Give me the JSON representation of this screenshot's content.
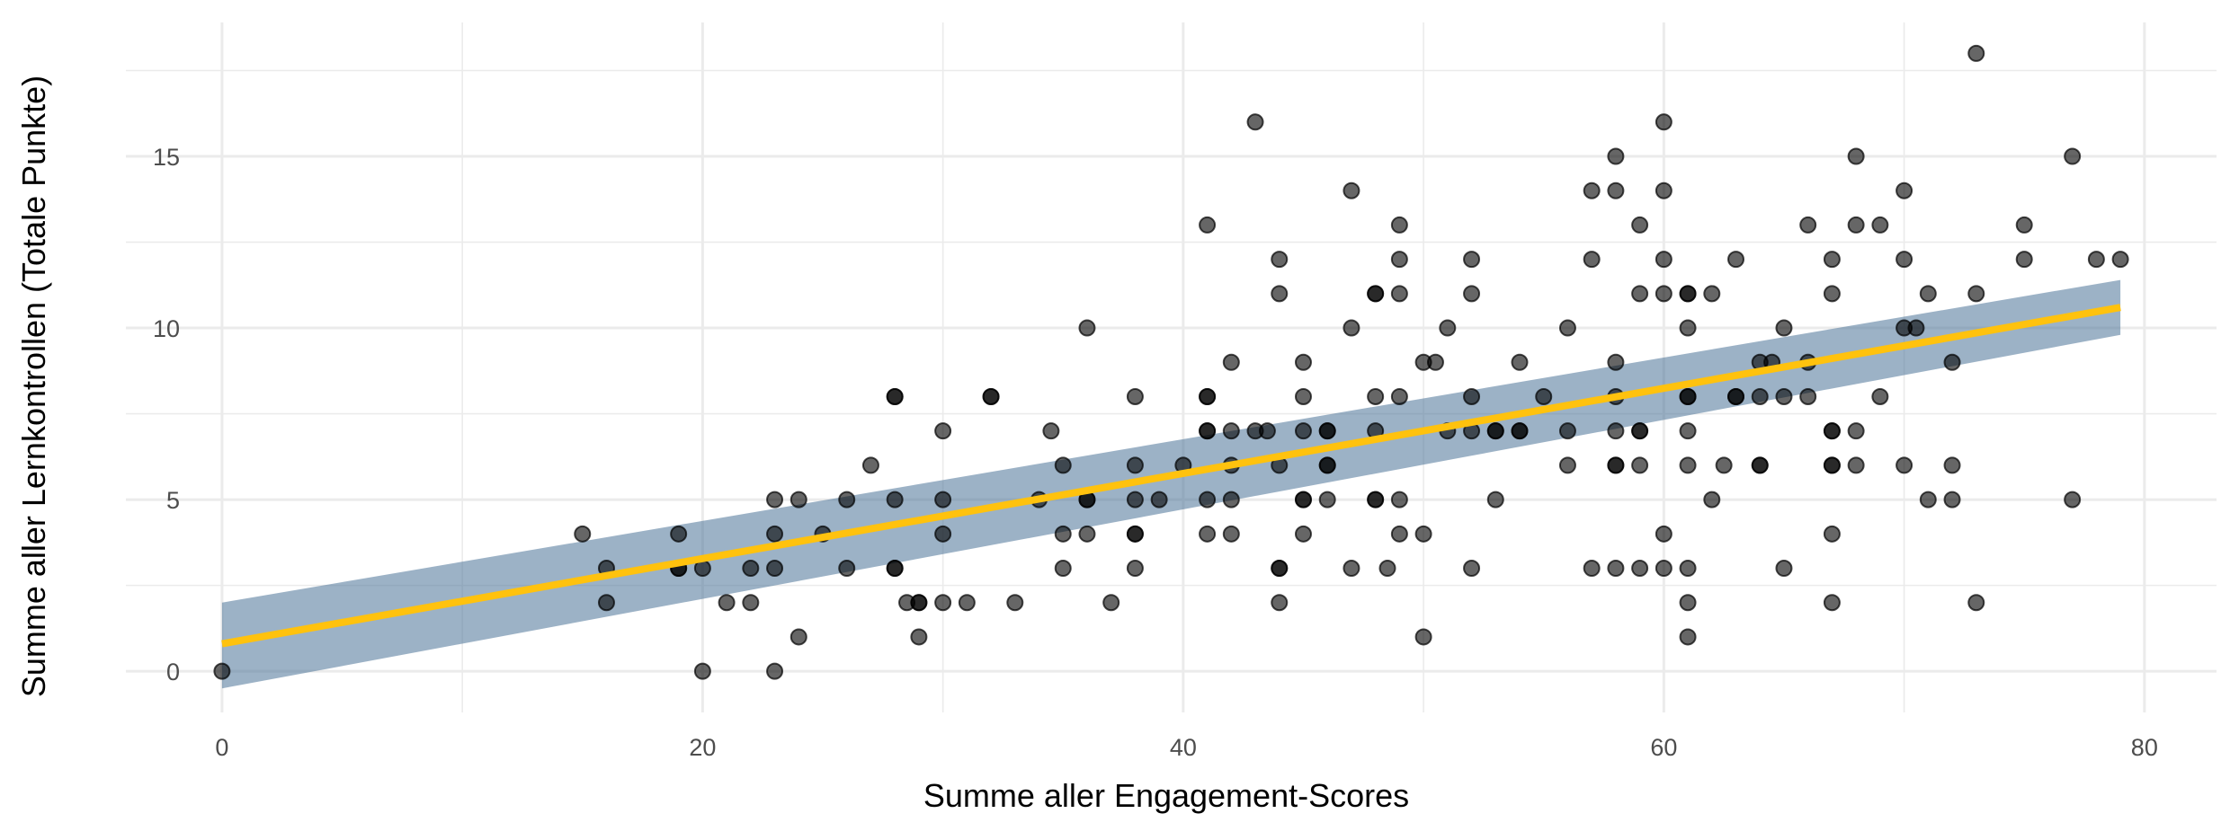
{
  "chart_data": {
    "type": "scatter",
    "title": "",
    "xlabel": "Summe aller Engagement-Scores",
    "ylabel": "Summe aller Lernkontrollen (Totale Punkte)",
    "xlim": [
      -4,
      83
    ],
    "ylim": [
      -1.2,
      18.9
    ],
    "x_ticks": [
      "0",
      "20",
      "40",
      "60",
      "80"
    ],
    "y_ticks": [
      "0",
      "5",
      "10",
      "15"
    ],
    "grid": true,
    "legend": "none",
    "colors": {
      "points": "#000000",
      "fit_line": "#FFC20E",
      "confidence_band": "#4A7398"
    },
    "points": [
      [
        0,
        0
      ],
      [
        15,
        4
      ],
      [
        16,
        3
      ],
      [
        16,
        2
      ],
      [
        19,
        4
      ],
      [
        19,
        3
      ],
      [
        19,
        3
      ],
      [
        20,
        3
      ],
      [
        20,
        0
      ],
      [
        21,
        2
      ],
      [
        22,
        2
      ],
      [
        22,
        3
      ],
      [
        23,
        5
      ],
      [
        23,
        4
      ],
      [
        23,
        3
      ],
      [
        23,
        0
      ],
      [
        24,
        5
      ],
      [
        24,
        1
      ],
      [
        25,
        4
      ],
      [
        26,
        5
      ],
      [
        26,
        3
      ],
      [
        27,
        6
      ],
      [
        28,
        8
      ],
      [
        28,
        8
      ],
      [
        28,
        5
      ],
      [
        28,
        3
      ],
      [
        28,
        3
      ],
      [
        28.5,
        2
      ],
      [
        29,
        2
      ],
      [
        29,
        2
      ],
      [
        29,
        1
      ],
      [
        30,
        7
      ],
      [
        30,
        5
      ],
      [
        30,
        4
      ],
      [
        30,
        2
      ],
      [
        31,
        2
      ],
      [
        32,
        8
      ],
      [
        32,
        8
      ],
      [
        33,
        2
      ],
      [
        34,
        5
      ],
      [
        34.5,
        7
      ],
      [
        35,
        6
      ],
      [
        35,
        4
      ],
      [
        35,
        3
      ],
      [
        36,
        5
      ],
      [
        36,
        5
      ],
      [
        36,
        10
      ],
      [
        36,
        4
      ],
      [
        37,
        2
      ],
      [
        38,
        8
      ],
      [
        38,
        6
      ],
      [
        38,
        5
      ],
      [
        38,
        4
      ],
      [
        38,
        4
      ],
      [
        38,
        3
      ],
      [
        39,
        5
      ],
      [
        40,
        6
      ],
      [
        41,
        13
      ],
      [
        41,
        8
      ],
      [
        41,
        8
      ],
      [
        41,
        7
      ],
      [
        41,
        7
      ],
      [
        41,
        5
      ],
      [
        41,
        4
      ],
      [
        42,
        9
      ],
      [
        42,
        7
      ],
      [
        42,
        6
      ],
      [
        42,
        5
      ],
      [
        42,
        4
      ],
      [
        43,
        16
      ],
      [
        43,
        7
      ],
      [
        43.5,
        7
      ],
      [
        44,
        12
      ],
      [
        44,
        11
      ],
      [
        44,
        6
      ],
      [
        44,
        3
      ],
      [
        44,
        3
      ],
      [
        44,
        2
      ],
      [
        45,
        9
      ],
      [
        45,
        8
      ],
      [
        45,
        7
      ],
      [
        45,
        5
      ],
      [
        45,
        5
      ],
      [
        45,
        4
      ],
      [
        46,
        7
      ],
      [
        46,
        7
      ],
      [
        46,
        6
      ],
      [
        46,
        6
      ],
      [
        46,
        5
      ],
      [
        47,
        14
      ],
      [
        47,
        10
      ],
      [
        47,
        3
      ],
      [
        48,
        11
      ],
      [
        48,
        11
      ],
      [
        48,
        8
      ],
      [
        48,
        7
      ],
      [
        48,
        5
      ],
      [
        48,
        5
      ],
      [
        48.5,
        3
      ],
      [
        49,
        13
      ],
      [
        49,
        12
      ],
      [
        49,
        11
      ],
      [
        49,
        8
      ],
      [
        49,
        5
      ],
      [
        49,
        4
      ],
      [
        50,
        9
      ],
      [
        50,
        4
      ],
      [
        50,
        1
      ],
      [
        50.5,
        9
      ],
      [
        51,
        10
      ],
      [
        51,
        7
      ],
      [
        52,
        12
      ],
      [
        52,
        11
      ],
      [
        52,
        8
      ],
      [
        52,
        7
      ],
      [
        52,
        3
      ],
      [
        53,
        7
      ],
      [
        53,
        7
      ],
      [
        53,
        5
      ],
      [
        54,
        9
      ],
      [
        54,
        7
      ],
      [
        54,
        7
      ],
      [
        55,
        8
      ],
      [
        56,
        10
      ],
      [
        56,
        7
      ],
      [
        56,
        6
      ],
      [
        57,
        14
      ],
      [
        57,
        12
      ],
      [
        57,
        3
      ],
      [
        58,
        15
      ],
      [
        58,
        14
      ],
      [
        58,
        9
      ],
      [
        58,
        8
      ],
      [
        58,
        7
      ],
      [
        58,
        6
      ],
      [
        58,
        6
      ],
      [
        58,
        3
      ],
      [
        59,
        13
      ],
      [
        59,
        11
      ],
      [
        59,
        7
      ],
      [
        59,
        7
      ],
      [
        59,
        6
      ],
      [
        59,
        3
      ],
      [
        60,
        16
      ],
      [
        60,
        14
      ],
      [
        60,
        12
      ],
      [
        60,
        11
      ],
      [
        60,
        4
      ],
      [
        60,
        3
      ],
      [
        61,
        11
      ],
      [
        61,
        11
      ],
      [
        61,
        10
      ],
      [
        61,
        8
      ],
      [
        61,
        8
      ],
      [
        61,
        7
      ],
      [
        61,
        6
      ],
      [
        61,
        3
      ],
      [
        61,
        2
      ],
      [
        61,
        1
      ],
      [
        62,
        11
      ],
      [
        62,
        5
      ],
      [
        62.5,
        6
      ],
      [
        63,
        12
      ],
      [
        63,
        8
      ],
      [
        63,
        8
      ],
      [
        64,
        9
      ],
      [
        64,
        8
      ],
      [
        64,
        6
      ],
      [
        64,
        6
      ],
      [
        64.5,
        9
      ],
      [
        65,
        10
      ],
      [
        65,
        8
      ],
      [
        65,
        3
      ],
      [
        66,
        13
      ],
      [
        66,
        9
      ],
      [
        66,
        8
      ],
      [
        67,
        12
      ],
      [
        67,
        11
      ],
      [
        67,
        7
      ],
      [
        67,
        7
      ],
      [
        67,
        6
      ],
      [
        67,
        6
      ],
      [
        67,
        4
      ],
      [
        67,
        2
      ],
      [
        68,
        15
      ],
      [
        68,
        13
      ],
      [
        68,
        7
      ],
      [
        68,
        6
      ],
      [
        69,
        13
      ],
      [
        69,
        8
      ],
      [
        70,
        14
      ],
      [
        70,
        12
      ],
      [
        70,
        10
      ],
      [
        70,
        6
      ],
      [
        70.5,
        10
      ],
      [
        71,
        11
      ],
      [
        71,
        5
      ],
      [
        72,
        9
      ],
      [
        72,
        6
      ],
      [
        72,
        5
      ],
      [
        73,
        18
      ],
      [
        73,
        11
      ],
      [
        73,
        2
      ],
      [
        75,
        13
      ],
      [
        75,
        12
      ],
      [
        77,
        15
      ],
      [
        77,
        5
      ],
      [
        78,
        12
      ],
      [
        79,
        12
      ]
    ],
    "fit": {
      "method": "linear",
      "x_range": [
        0,
        79
      ],
      "y_at_start": 0.8,
      "y_at_end": 10.6,
      "band_low": [
        -0.5,
        9.8
      ],
      "band_high": [
        2.0,
        11.4
      ]
    }
  }
}
